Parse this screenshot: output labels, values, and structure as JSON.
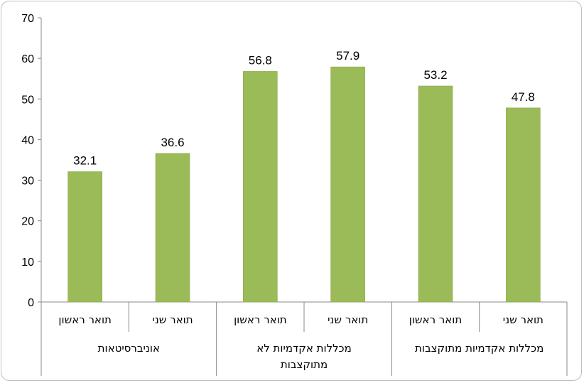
{
  "chart_data": {
    "type": "bar",
    "title": "",
    "xlabel": "",
    "ylabel": "",
    "ylim": [
      0,
      70
    ],
    "yticks": [
      0,
      10,
      20,
      30,
      40,
      50,
      60,
      70
    ],
    "grid": false,
    "bar_color": "#9bbb59",
    "categories": [
      "תואר ראשון",
      "תואר שני",
      "תואר ראשון",
      "תואר שני",
      "תואר ראשון",
      "תואר שני"
    ],
    "groups": [
      {
        "label": [
          "אוניברסיטאות"
        ],
        "span": [
          0,
          1
        ]
      },
      {
        "label": [
          "מכללות אקדמיות לא",
          "מתוקצבות"
        ],
        "span": [
          2,
          3
        ]
      },
      {
        "label": [
          "מכללות אקדמיות מתוקצבות"
        ],
        "span": [
          4,
          5
        ]
      }
    ],
    "values": [
      32.1,
      36.6,
      56.8,
      57.9,
      53.2,
      47.8
    ]
  }
}
